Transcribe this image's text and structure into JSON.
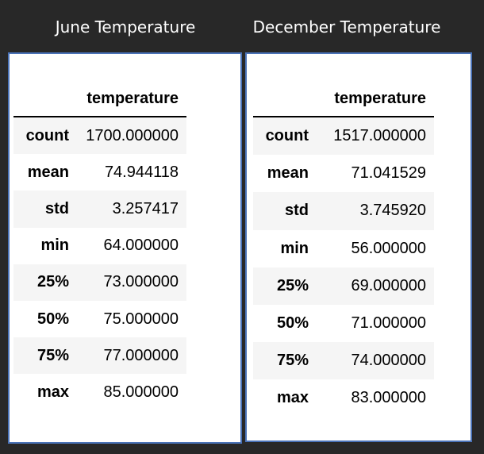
{
  "june": {
    "title": "June Temperature",
    "column": "temperature",
    "rows": [
      {
        "label": "count",
        "value": "1700.000000"
      },
      {
        "label": "mean",
        "value": "74.944118"
      },
      {
        "label": "std",
        "value": "3.257417"
      },
      {
        "label": "min",
        "value": "64.000000"
      },
      {
        "label": "25%",
        "value": "73.000000"
      },
      {
        "label": "50%",
        "value": "75.000000"
      },
      {
        "label": "75%",
        "value": "77.000000"
      },
      {
        "label": "max",
        "value": "85.000000"
      }
    ]
  },
  "december": {
    "title": "December Temperature",
    "column": "temperature",
    "rows": [
      {
        "label": "count",
        "value": "1517.000000"
      },
      {
        "label": "mean",
        "value": "71.041529"
      },
      {
        "label": "std",
        "value": "3.745920"
      },
      {
        "label": "min",
        "value": "56.000000"
      },
      {
        "label": "25%",
        "value": "69.000000"
      },
      {
        "label": "50%",
        "value": "71.000000"
      },
      {
        "label": "75%",
        "value": "74.000000"
      },
      {
        "label": "max",
        "value": "83.000000"
      }
    ]
  },
  "colors": {
    "background": "#282828",
    "panel_border": "#4a73b8",
    "stripe": "#f5f5f5"
  }
}
